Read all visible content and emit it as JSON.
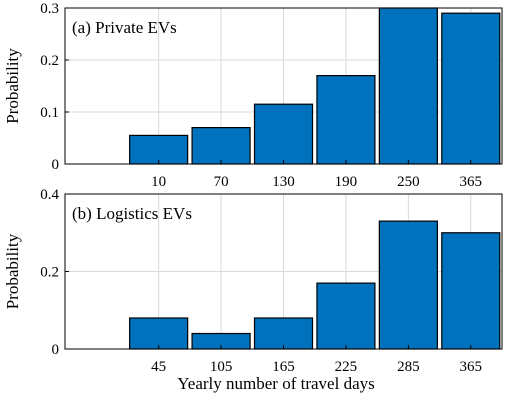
{
  "figure": {
    "xlabel": "Yearly number of travel days",
    "bar_color": "#0072bd",
    "bar_edge_color": "#000000",
    "grid_color": "#d9d9d9"
  },
  "chart_data": [
    {
      "type": "bar",
      "panel_label": "(a) Private EVs",
      "ylabel": "Probability",
      "categories": [
        "10",
        "70",
        "130",
        "190",
        "250",
        "365"
      ],
      "values": [
        0.055,
        0.07,
        0.115,
        0.17,
        0.3,
        0.29
      ],
      "ylim": [
        0,
        0.3
      ],
      "yticks": [
        0,
        0.1,
        0.2,
        0.3
      ],
      "ytick_labels": [
        "0",
        "0.1",
        "0.2",
        "0.3"
      ],
      "grid": true,
      "legend": "none"
    },
    {
      "type": "bar",
      "panel_label": "(b) Logistics EVs",
      "ylabel": "Probability",
      "categories": [
        "45",
        "105",
        "165",
        "225",
        "285",
        "365"
      ],
      "values": [
        0.08,
        0.04,
        0.08,
        0.17,
        0.33,
        0.3
      ],
      "ylim": [
        0,
        0.4
      ],
      "yticks": [
        0,
        0.2,
        0.4
      ],
      "ytick_labels": [
        "0",
        "0.2",
        "0.4"
      ],
      "grid": true,
      "legend": "none"
    }
  ]
}
